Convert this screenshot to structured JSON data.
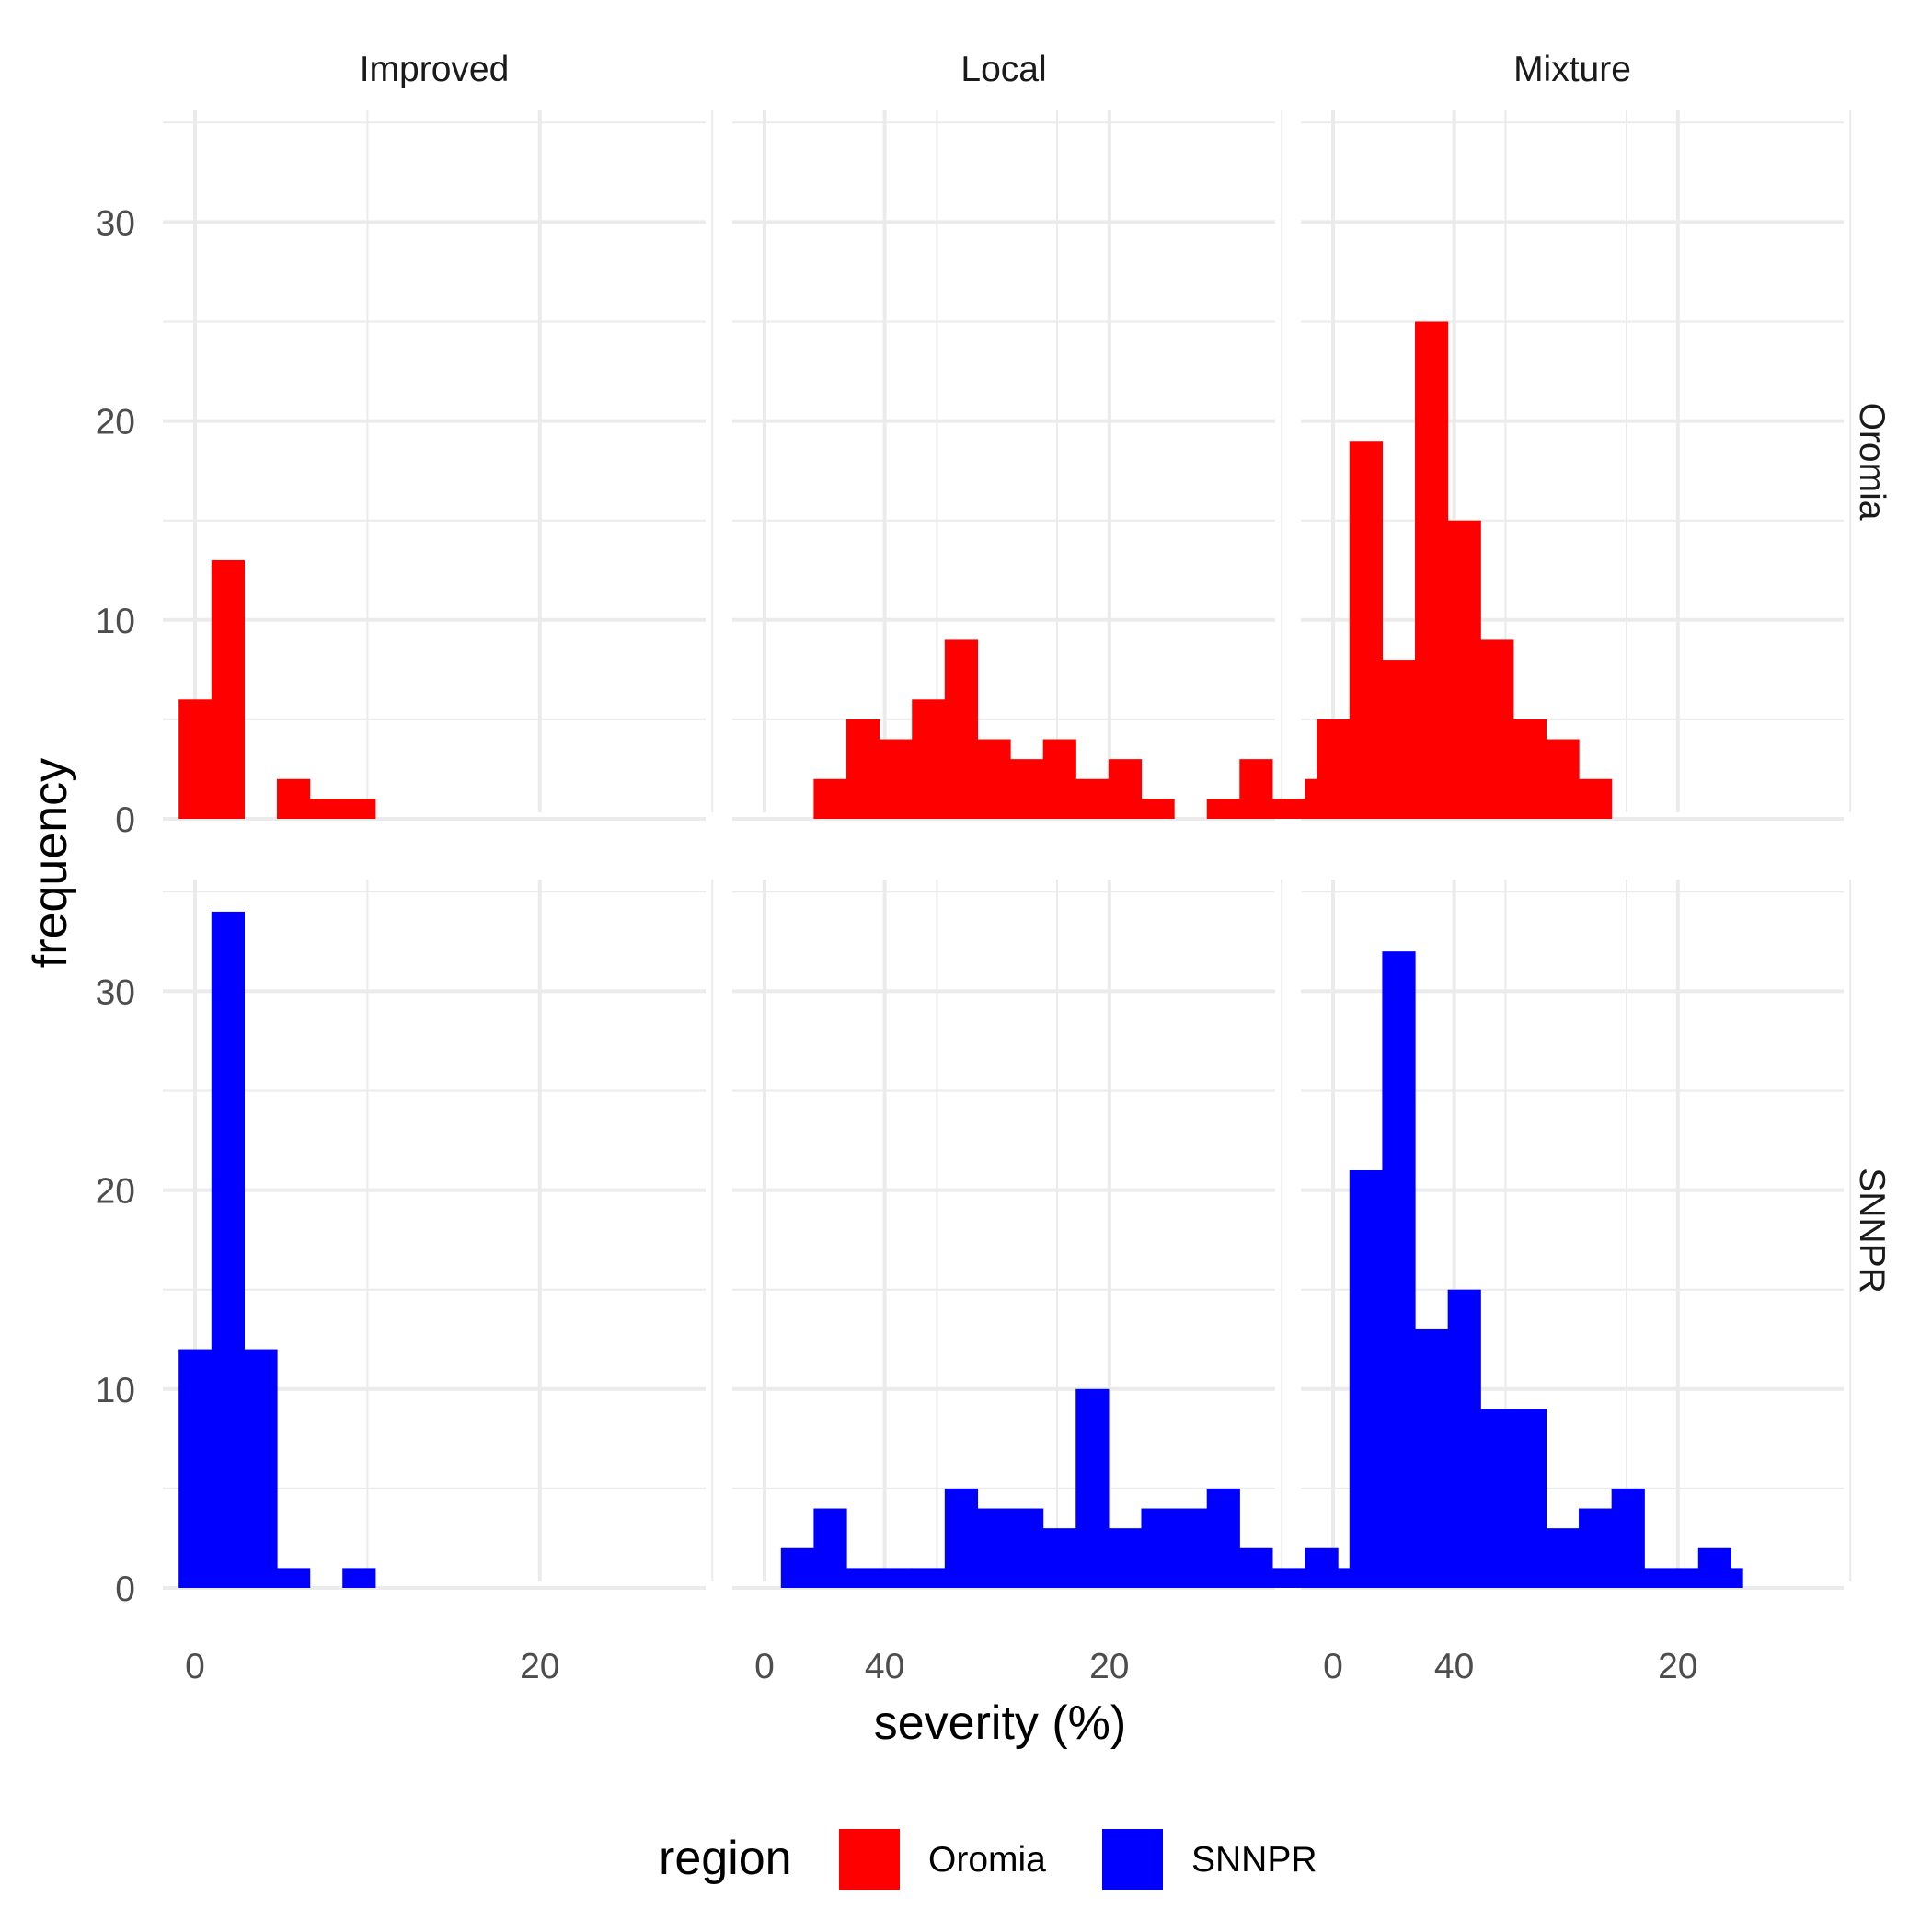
{
  "chart_data": {
    "type": "bar",
    "subtype": "faceted-histogram",
    "xlabel": "severity (%)",
    "ylabel": "frequency",
    "xlim": [
      -2.2,
      57.2
    ],
    "ylim": [
      0,
      35.5
    ],
    "x_ticks": [
      0,
      20,
      40
    ],
    "y_ticks": [
      0,
      10,
      20,
      30
    ],
    "grid": true,
    "bin_width": 1.9,
    "facet_columns": [
      "Improved",
      "Local",
      "Mixture"
    ],
    "facet_rows": [
      "Oromia",
      "SNNPR"
    ],
    "legend": {
      "title": "region",
      "position": "bottom",
      "entries": [
        {
          "label": "Oromia",
          "color": "#ff0000"
        },
        {
          "label": "SNNPR",
          "color": "#0000ff"
        }
      ]
    },
    "colors": {
      "Oromia": "#ff0000",
      "SNNPR": "#0000ff"
    },
    "panels": [
      {
        "row": "Oromia",
        "col": "Improved",
        "bins": [
          [
            0,
            6
          ],
          [
            1.9,
            13
          ],
          [
            5.7,
            2
          ],
          [
            7.6,
            1
          ],
          [
            9.5,
            1
          ]
        ]
      },
      {
        "row": "Oromia",
        "col": "Local",
        "bins": [
          [
            3.8,
            2
          ],
          [
            5.7,
            5
          ],
          [
            7.6,
            4
          ],
          [
            9.5,
            6
          ],
          [
            11.4,
            9
          ],
          [
            13.3,
            4
          ],
          [
            15.2,
            3
          ],
          [
            17.1,
            4
          ],
          [
            19.0,
            2
          ],
          [
            20.9,
            3
          ],
          [
            22.8,
            1
          ],
          [
            26.6,
            1
          ],
          [
            28.5,
            3
          ],
          [
            30.4,
            1
          ],
          [
            32.3,
            2
          ]
        ]
      },
      {
        "row": "Oromia",
        "col": "Mixture",
        "bins": [
          [
            0,
            5
          ],
          [
            1.9,
            19
          ],
          [
            3.8,
            8
          ],
          [
            5.7,
            25
          ],
          [
            7.6,
            15
          ],
          [
            9.5,
            9
          ],
          [
            11.4,
            5
          ],
          [
            13.3,
            4
          ],
          [
            15.2,
            2
          ]
        ]
      },
      {
        "row": "SNNPR",
        "col": "Improved",
        "bins": [
          [
            0,
            12
          ],
          [
            1.9,
            34
          ],
          [
            3.8,
            12
          ],
          [
            5.7,
            1
          ],
          [
            9.5,
            1
          ]
        ]
      },
      {
        "row": "SNNPR",
        "col": "Local",
        "bins": [
          [
            1.9,
            2
          ],
          [
            3.8,
            4
          ],
          [
            5.7,
            1
          ],
          [
            7.6,
            1
          ],
          [
            9.5,
            1
          ],
          [
            11.4,
            5
          ],
          [
            13.3,
            4
          ],
          [
            15.2,
            4
          ],
          [
            17.1,
            3
          ],
          [
            19.0,
            10
          ],
          [
            20.9,
            3
          ],
          [
            22.8,
            4
          ],
          [
            24.7,
            4
          ],
          [
            26.6,
            5
          ],
          [
            28.5,
            2
          ],
          [
            30.4,
            1
          ],
          [
            32.3,
            2
          ],
          [
            34.2,
            1
          ],
          [
            36.1,
            1
          ],
          [
            38.0,
            1
          ],
          [
            39.9,
            1
          ],
          [
            41.8,
            1
          ],
          [
            45.6,
            2
          ],
          [
            47.5,
            1
          ],
          [
            55.1,
            2
          ]
        ]
      },
      {
        "row": "SNNPR",
        "col": "Mixture",
        "bins": [
          [
            1.9,
            21
          ],
          [
            3.8,
            32
          ],
          [
            5.7,
            13
          ],
          [
            7.6,
            15
          ],
          [
            9.5,
            9
          ],
          [
            11.4,
            9
          ],
          [
            13.3,
            3
          ],
          [
            15.2,
            4
          ],
          [
            17.1,
            5
          ],
          [
            19.0,
            1
          ],
          [
            20.9,
            1
          ],
          [
            22.8,
            1
          ]
        ]
      }
    ]
  }
}
